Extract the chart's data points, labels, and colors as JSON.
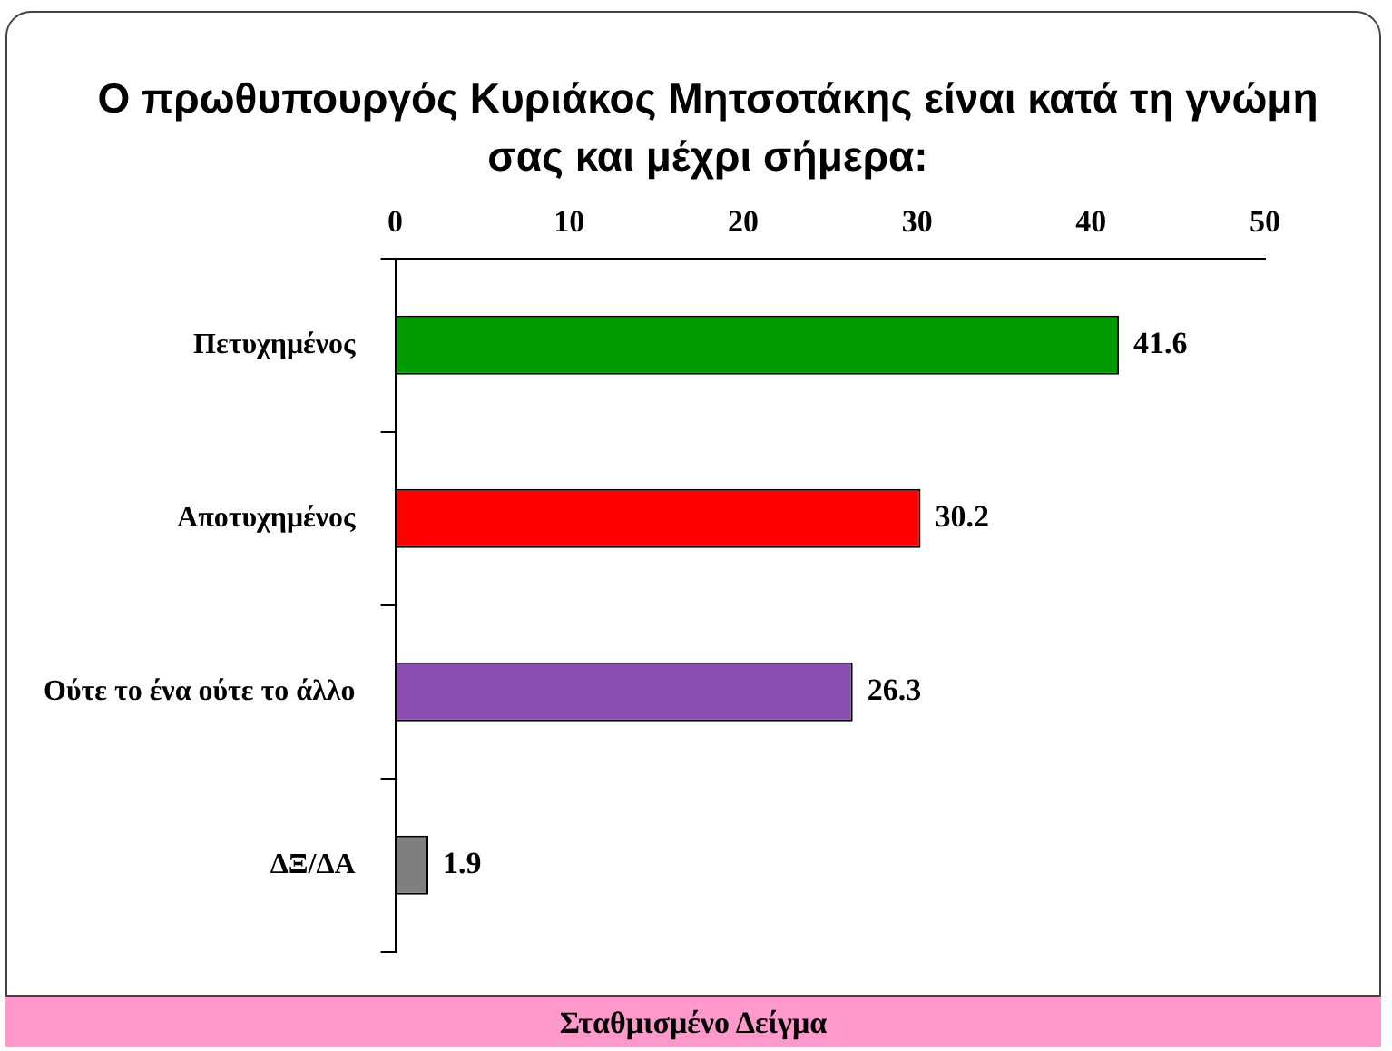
{
  "chart_data": {
    "type": "bar",
    "orientation": "horizontal",
    "title": "Ο πρωθυπουργός Κυριάκος Μητσοτάκης είναι κατά τη γνώμη σας και μέχρι σήμερα:",
    "categories": [
      "Πετυχημένος",
      "Αποτυχημένος",
      "Ούτε το ένα ούτε το άλλο",
      "ΔΞ/ΔΑ"
    ],
    "values": [
      41.6,
      30.2,
      26.3,
      1.9
    ],
    "colors": [
      "#009900",
      "#ff0000",
      "#8a4fb0",
      "#7f7f7f"
    ],
    "xlim": [
      0,
      50
    ],
    "xticks": [
      0,
      10,
      20,
      30,
      40,
      50
    ],
    "grid": false,
    "legend": false,
    "data_labels": true,
    "annotations": [
      "Σταθμισμένο Δείγμα"
    ]
  }
}
